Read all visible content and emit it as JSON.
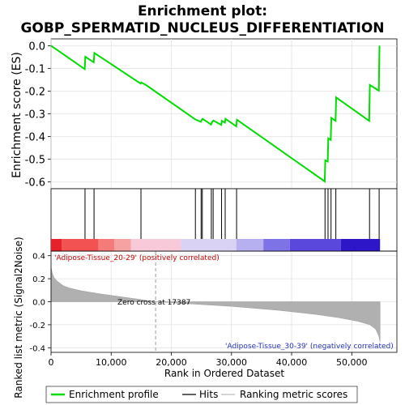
{
  "chart_data": {
    "type": "line",
    "title": "Enrichment plot:",
    "subtitle": "GOBP_SPERMATID_NUCLEUS_DIFFERENTIATION",
    "top_panel": {
      "ylabel": "Enrichment score (ES)",
      "ylim": [
        -0.63,
        0.03
      ],
      "yticks": [
        0.0,
        -0.1,
        -0.2,
        -0.3,
        -0.4,
        -0.5,
        -0.6
      ],
      "ytick_labels": [
        "0.0",
        "-0.1",
        "-0.2",
        "-0.3",
        "-0.4",
        "-0.5",
        "-0.6"
      ],
      "series_color": "#00dd00",
      "profile": [
        [
          0,
          0.0
        ],
        [
          5600,
          -0.103
        ],
        [
          5700,
          -0.049
        ],
        [
          7100,
          -0.073
        ],
        [
          7200,
          -0.032
        ],
        [
          14900,
          -0.167
        ],
        [
          15000,
          -0.162
        ],
        [
          15900,
          -0.175
        ],
        [
          24000,
          -0.325
        ],
        [
          24900,
          -0.335
        ],
        [
          25000,
          -0.329
        ],
        [
          25200,
          -0.322
        ],
        [
          26600,
          -0.347
        ],
        [
          26800,
          -0.335
        ],
        [
          27000,
          -0.33
        ],
        [
          28300,
          -0.349
        ],
        [
          28400,
          -0.331
        ],
        [
          28900,
          -0.339
        ],
        [
          29000,
          -0.322
        ],
        [
          30800,
          -0.355
        ],
        [
          30900,
          -0.326
        ],
        [
          45500,
          -0.598
        ],
        [
          45600,
          -0.505
        ],
        [
          46000,
          -0.51
        ],
        [
          46100,
          -0.408
        ],
        [
          46500,
          -0.415
        ],
        [
          46600,
          -0.318
        ],
        [
          47300,
          -0.331
        ],
        [
          47400,
          -0.228
        ],
        [
          52900,
          -0.331
        ],
        [
          53000,
          -0.173
        ],
        [
          54500,
          -0.198
        ],
        [
          54600,
          0.0
        ]
      ]
    },
    "hits": [
      5650,
      7150,
      14950,
      24000,
      24950,
      25150,
      26650,
      26950,
      28350,
      28950,
      30850,
      45550,
      46050,
      46550,
      47350,
      52950,
      54550
    ],
    "gradient_bar": {
      "segments": [
        [
          "#e8202a",
          0,
          1800
        ],
        [
          "#f25252",
          1800,
          7900
        ],
        [
          "#f57b7b",
          7900,
          10500
        ],
        [
          "#f7a2a2",
          10500,
          13300
        ],
        [
          "#f8c9d8",
          13300,
          21600
        ],
        [
          "#d9d2f4",
          21600,
          30800
        ],
        [
          "#b7b0f0",
          30800,
          35300
        ],
        [
          "#7d72e6",
          35300,
          39700
        ],
        [
          "#5a48dd",
          39700,
          48200
        ],
        [
          "#2c16c8",
          48200,
          54700
        ]
      ],
      "label_pos": "'Adipose-Tissue_20-29' (positively correlated)",
      "label_neg": "'Adipose-Tissue_30-39' (negatively correlated)"
    },
    "bottom_panel": {
      "ylabel": "Ranked list metric (Signal2Noise)",
      "ylim": [
        -0.44,
        0.44
      ],
      "yticks": [
        0.4,
        0.2,
        0.0,
        -0.2,
        -0.4
      ],
      "ytick_labels": [
        "0.4",
        "0.2",
        "0.0",
        "-0.2",
        "-0.4"
      ],
      "zero_cross": 17387,
      "zero_cross_label": "Zero cross at 17387",
      "metric": [
        [
          0,
          0.3
        ],
        [
          200,
          0.25
        ],
        [
          500,
          0.21
        ],
        [
          1000,
          0.18
        ],
        [
          2000,
          0.14
        ],
        [
          3000,
          0.12
        ],
        [
          5000,
          0.095
        ],
        [
          8000,
          0.07
        ],
        [
          12000,
          0.04
        ],
        [
          15000,
          0.018
        ],
        [
          17387,
          0.0
        ],
        [
          22000,
          -0.015
        ],
        [
          30000,
          -0.04
        ],
        [
          38000,
          -0.075
        ],
        [
          44000,
          -0.11
        ],
        [
          48000,
          -0.14
        ],
        [
          51000,
          -0.17
        ],
        [
          53000,
          -0.2
        ],
        [
          54000,
          -0.24
        ],
        [
          54500,
          -0.3
        ],
        [
          54700,
          -0.35
        ]
      ]
    },
    "xlabel": "Rank in Ordered Dataset",
    "xlim": [
      0,
      57500
    ],
    "xticks": [
      0,
      10000,
      20000,
      30000,
      40000,
      50000
    ],
    "xtick_labels": [
      "0",
      "10,000",
      "20,000",
      "30,000",
      "40,000",
      "50,000"
    ],
    "legend": {
      "placement": "bottom",
      "items": [
        "Enrichment profile",
        "Hits",
        "Ranking metric scores"
      ],
      "colors": [
        "#00dd00",
        "#000000",
        "#bbbbbb"
      ]
    }
  }
}
